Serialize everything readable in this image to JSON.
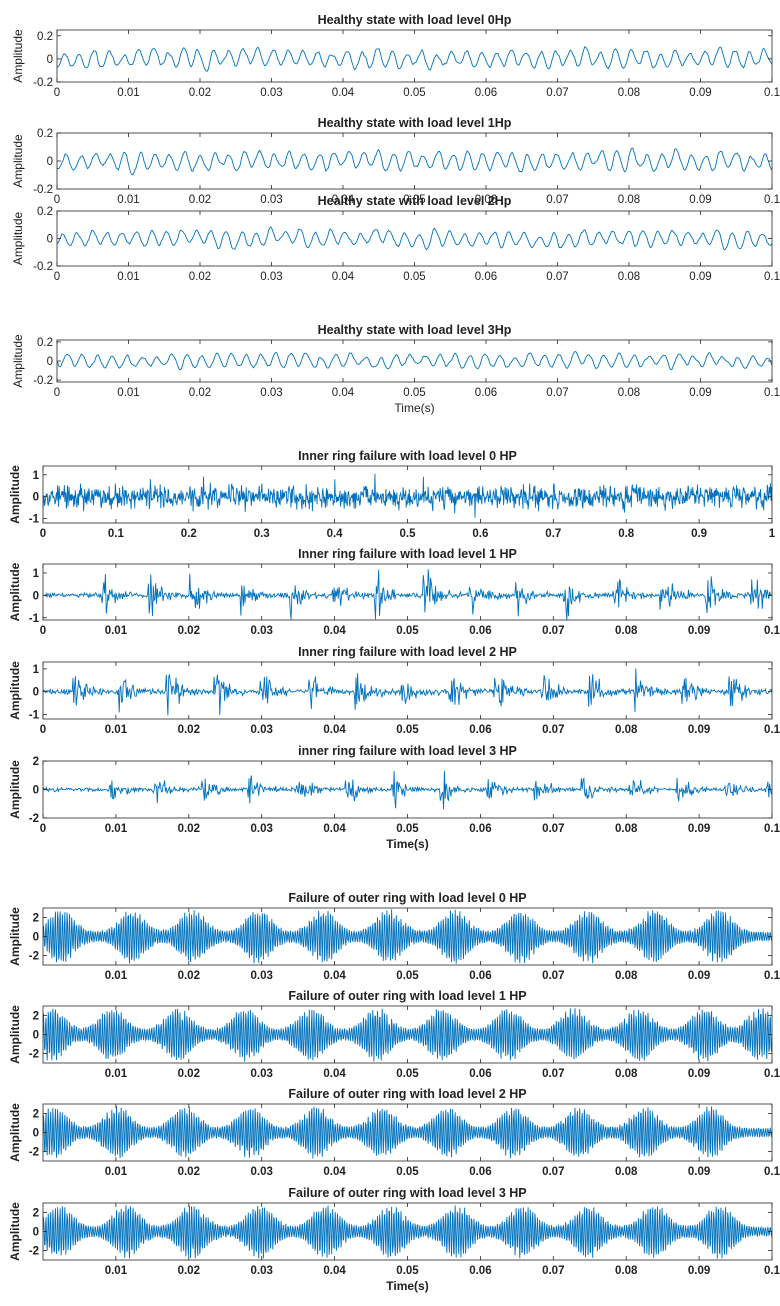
{
  "chart_data": [
    {
      "type": "line",
      "title": "Healthy state with load level 0Hp",
      "ylabel": "Amplitude",
      "xlabel": "",
      "xlim": [
        0,
        0.1
      ],
      "ylim": [
        -0.2,
        0.25
      ],
      "xticks": [
        "0",
        "0.01",
        "0.02",
        "0.03",
        "0.04",
        "0.05",
        "0.06",
        "0.07",
        "0.08",
        "0.09",
        "0.1"
      ],
      "yticks": [
        "-0.2",
        "0",
        "0.2"
      ],
      "series": [
        {
          "color": "#0072bd",
          "signal": "noise",
          "amplitude": 0.22,
          "samples": 700,
          "seed": 11
        }
      ]
    },
    {
      "type": "line",
      "title": "Healthy state with load level 1Hp",
      "ylabel": "Amplitude",
      "xlabel": "",
      "xlim": [
        0,
        0.1
      ],
      "ylim": [
        -0.2,
        0.2
      ],
      "xticks": [
        "0",
        "0.01",
        "0.02",
        "0.03",
        "0.04",
        "0.05",
        "0.06",
        "0.07",
        "0.08",
        "0.09",
        "0.1"
      ],
      "yticks": [
        "-0.2",
        "0",
        "0.2"
      ],
      "series": [
        {
          "color": "#0072bd",
          "signal": "noise",
          "amplitude": 0.19,
          "samples": 700,
          "seed": 23
        }
      ]
    },
    {
      "type": "line",
      "title": "Healthy state with load level 2Hp",
      "ylabel": "Amplitude",
      "xlabel": "",
      "xlim": [
        0,
        0.1
      ],
      "ylim": [
        -0.2,
        0.2
      ],
      "xticks": [
        "0",
        "0.01",
        "0.02",
        "0.03",
        "0.04",
        "0.05",
        "0.06",
        "0.07",
        "0.08",
        "0.09",
        "0.1"
      ],
      "yticks": [
        "-0.2",
        "0",
        "0.2"
      ],
      "series": [
        {
          "color": "#0072bd",
          "signal": "noise",
          "amplitude": 0.17,
          "samples": 700,
          "seed": 37
        }
      ]
    },
    {
      "type": "line",
      "title": "Healthy state with load level 3Hp",
      "ylabel": "Amplitude",
      "xlabel": "Time(s)",
      "xlim": [
        0,
        0.1
      ],
      "ylim": [
        -0.22,
        0.22
      ],
      "xticks": [
        "0",
        "0.01",
        "0.02",
        "0.03",
        "0.04",
        "0.05",
        "0.06",
        "0.07",
        "0.08",
        "0.09",
        "0.1"
      ],
      "yticks": [
        "-0.2",
        "0",
        "0.2"
      ],
      "series": [
        {
          "color": "#0072bd",
          "signal": "noise",
          "amplitude": 0.2,
          "samples": 700,
          "seed": 41
        }
      ]
    },
    {
      "type": "line",
      "title": "Inner ring failure with load level 0 HP",
      "ylabel": "Amplitude",
      "xlabel": "",
      "xlim": [
        0,
        1
      ],
      "ylim": [
        -1.2,
        1.4
      ],
      "xticks": [
        "0",
        "0.1",
        "0.2",
        "0.3",
        "0.4",
        "0.5",
        "0.6",
        "0.7",
        "0.8",
        "0.9",
        "1"
      ],
      "yticks": [
        "-1",
        "0",
        "1"
      ],
      "series": [
        {
          "color": "#0072bd",
          "signal": "dense",
          "amplitude": 1.3,
          "samples": 1400,
          "seed": 53
        }
      ]
    },
    {
      "type": "line",
      "title": "Inner ring failure with load level 1 HP",
      "ylabel": "Amplitude",
      "xlabel": "",
      "xlim": [
        0,
        0.1
      ],
      "ylim": [
        -1.1,
        1.4
      ],
      "xticks": [
        "0",
        "0.01",
        "0.02",
        "0.03",
        "0.04",
        "0.05",
        "0.06",
        "0.07",
        "0.08",
        "0.09",
        "0.1"
      ],
      "yticks": [
        "-1",
        "0",
        "1"
      ],
      "series": [
        {
          "color": "#0072bd",
          "signal": "impulse",
          "amplitude": 1.2,
          "samples": 900,
          "seed": 61,
          "bursts": [
            0.0083,
            0.0148,
            0.0205,
            0.0275,
            0.034,
            0.0398,
            0.0458,
            0.0525,
            0.0588,
            0.0652,
            0.0718,
            0.0785,
            0.085,
            0.0912,
            0.0975
          ]
        }
      ]
    },
    {
      "type": "line",
      "title": "Inner ring failure with load level 2 HP",
      "ylabel": "Amplitude",
      "xlabel": "",
      "xlim": [
        0,
        0.1
      ],
      "ylim": [
        -1.2,
        1.3
      ],
      "xticks": [
        "0",
        "0.01",
        "0.02",
        "0.03",
        "0.04",
        "0.05",
        "0.06",
        "0.07",
        "0.08",
        "0.09",
        "0.1"
      ],
      "yticks": [
        "-1",
        "0",
        "1"
      ],
      "series": [
        {
          "color": "#0072bd",
          "signal": "impulse",
          "amplitude": 1.2,
          "samples": 900,
          "seed": 71,
          "bursts": [
            0.0045,
            0.0108,
            0.0172,
            0.0238,
            0.0302,
            0.0368,
            0.0432,
            0.0495,
            0.056,
            0.0622,
            0.0688,
            0.0752,
            0.0815,
            0.088,
            0.0945
          ]
        }
      ]
    },
    {
      "type": "line",
      "title": "inner ring failure with load level 3 HP",
      "ylabel": "Amplitude",
      "xlabel": "Time(s)",
      "xlim": [
        0,
        0.1
      ],
      "ylim": [
        -2,
        2
      ],
      "xticks": [
        "0",
        "0.01",
        "0.02",
        "0.03",
        "0.04",
        "0.05",
        "0.06",
        "0.07",
        "0.08",
        "0.09",
        "0.1"
      ],
      "yticks": [
        "-2",
        "0",
        "2"
      ],
      "series": [
        {
          "color": "#0072bd",
          "signal": "impulse",
          "amplitude": 1.4,
          "samples": 900,
          "seed": 83,
          "bursts": [
            0.0095,
            0.0155,
            0.0222,
            0.0285,
            0.0352,
            0.0418,
            0.0482,
            0.0548,
            0.0612,
            0.0678,
            0.0742,
            0.0808,
            0.0872,
            0.0938,
            0.0995
          ]
        }
      ]
    },
    {
      "type": "line",
      "title": "Failure of outer ring with load level 0 HP",
      "ylabel": "Amplitude",
      "xlabel": "",
      "xlim": [
        0,
        0.1
      ],
      "ylim": [
        -3,
        3
      ],
      "xticks": [
        "0.01",
        "0.02",
        "0.03",
        "0.04",
        "0.05",
        "0.06",
        "0.07",
        "0.08",
        "0.09",
        "0.1"
      ],
      "yticks": [
        "-2",
        "0",
        "2"
      ],
      "series": [
        {
          "color": "#0072bd",
          "signal": "burst",
          "amplitude": 2.9,
          "samples": 1400,
          "seed": 97,
          "bursts": [
            0.0025,
            0.0122,
            0.0205,
            0.0295,
            0.0385,
            0.0475,
            0.0565,
            0.0655,
            0.0748,
            0.0838,
            0.0928
          ]
        }
      ]
    },
    {
      "type": "line",
      "title": "Failure of outer ring with load level 1 HP",
      "ylabel": "Amplitude",
      "xlabel": "",
      "xlim": [
        0,
        0.1
      ],
      "ylim": [
        -3,
        3
      ],
      "xticks": [
        "0.01",
        "0.02",
        "0.03",
        "0.04",
        "0.05",
        "0.06",
        "0.07",
        "0.08",
        "0.09",
        "0.1"
      ],
      "yticks": [
        "-2",
        "0",
        "2"
      ],
      "series": [
        {
          "color": "#0072bd",
          "signal": "burst",
          "amplitude": 2.9,
          "samples": 1400,
          "seed": 101,
          "bursts": [
            0.0012,
            0.0095,
            0.0185,
            0.0278,
            0.0368,
            0.0458,
            0.0548,
            0.0638,
            0.0728,
            0.0818,
            0.0908,
            0.0985
          ]
        }
      ]
    },
    {
      "type": "line",
      "title": "Failure of outer ring with load level 2 HP",
      "ylabel": "Amplitude",
      "xlabel": "",
      "xlim": [
        0,
        0.1
      ],
      "ylim": [
        -3,
        3
      ],
      "xticks": [
        "0.01",
        "0.02",
        "0.03",
        "0.04",
        "0.05",
        "0.06",
        "0.07",
        "0.08",
        "0.09",
        "0.1"
      ],
      "yticks": [
        "-2",
        "0",
        "2"
      ],
      "series": [
        {
          "color": "#0072bd",
          "signal": "burst",
          "amplitude": 2.8,
          "samples": 1400,
          "seed": 113,
          "bursts": [
            0.0015,
            0.0102,
            0.0195,
            0.0285,
            0.0375,
            0.0465,
            0.0555,
            0.0645,
            0.0735,
            0.0825,
            0.0915
          ]
        }
      ]
    },
    {
      "type": "line",
      "title": "Failure of outer ring with load level 3 HP",
      "ylabel": "Amplitude",
      "xlabel": "Time(s)",
      "xlim": [
        0,
        0.1
      ],
      "ylim": [
        -3,
        3
      ],
      "xticks": [
        "0.01",
        "0.02",
        "0.03",
        "0.04",
        "0.05",
        "0.06",
        "0.07",
        "0.08",
        "0.09",
        "0.1"
      ],
      "yticks": [
        "-2",
        "0",
        "2"
      ],
      "series": [
        {
          "color": "#0072bd",
          "signal": "burst",
          "amplitude": 2.9,
          "samples": 1400,
          "seed": 127,
          "bursts": [
            0.0022,
            0.0115,
            0.0205,
            0.0298,
            0.0388,
            0.0478,
            0.0568,
            0.0658,
            0.0748,
            0.0838,
            0.0928
          ]
        }
      ]
    }
  ]
}
